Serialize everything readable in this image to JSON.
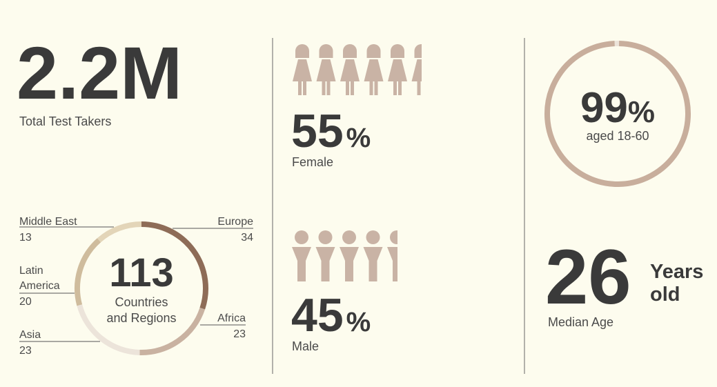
{
  "total": {
    "value": "2.2M",
    "label": "Total Test Takers"
  },
  "regions": {
    "count": "113",
    "label": "Countries and Regions",
    "items": [
      {
        "name": "Europe",
        "value": 34,
        "color": "#8e6c57"
      },
      {
        "name": "Africa",
        "value": 23,
        "color": "#c9b2a1"
      },
      {
        "name": "Asia",
        "value": 23,
        "color": "#ece4da"
      },
      {
        "name": "Latin America",
        "value": 20,
        "color": "#cfbc9d"
      },
      {
        "name": "Middle East",
        "value": 13,
        "color": "#e3d5b8"
      }
    ]
  },
  "female": {
    "value": 55,
    "unit": "%",
    "label": "Female"
  },
  "male": {
    "value": 45,
    "unit": "%",
    "label": "Male"
  },
  "age_range": {
    "value": 99,
    "unit": "%",
    "label": "aged 18-60",
    "color": "#c8ae9c"
  },
  "median_age": {
    "value": 26,
    "unit": "Years old",
    "label": "Median Age"
  }
}
